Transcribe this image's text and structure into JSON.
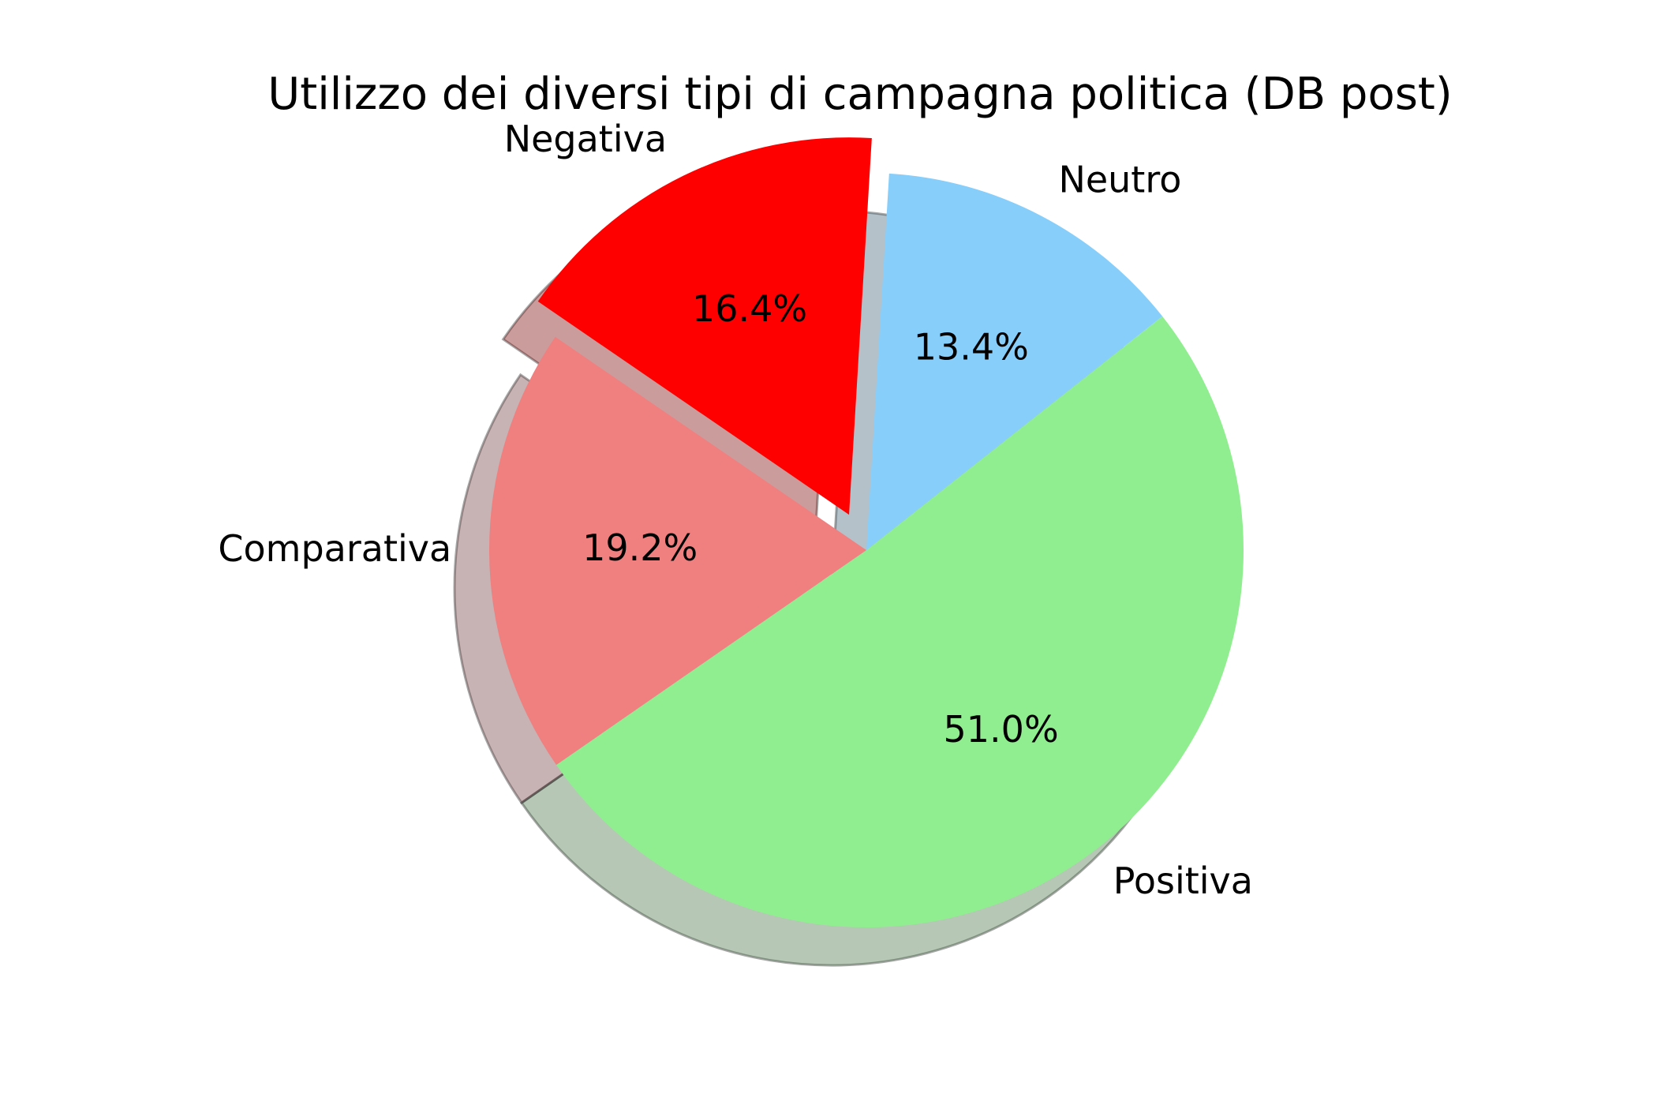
{
  "chart_data": {
    "type": "pie",
    "title": "Utilizzo dei diversi tipi di campagna politica (DB post)",
    "categories": [
      "Positiva",
      "Comparativa",
      "Negativa",
      "Neutro"
    ],
    "values": [
      51.0,
      19.2,
      16.4,
      13.4
    ],
    "value_labels": [
      "51.0%",
      "19.2%",
      "16.4%",
      "13.4%"
    ],
    "colors": [
      "#90ee90",
      "#f08080",
      "#ff0000",
      "#87cefa"
    ],
    "exploded": [
      false,
      false,
      true,
      false
    ],
    "shadow": true,
    "direction": "clockwise"
  }
}
